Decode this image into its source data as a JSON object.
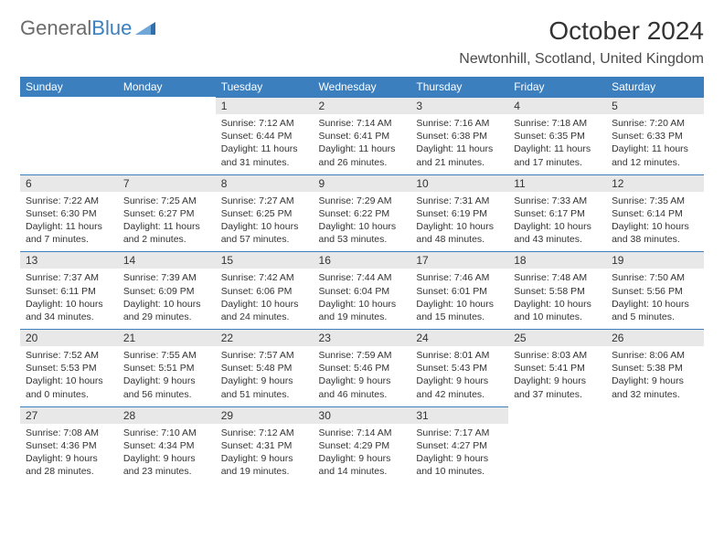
{
  "logo": {
    "word1": "General",
    "word2": "Blue"
  },
  "title": "October 2024",
  "location": "Newtonhill, Scotland, United Kingdom",
  "dayHeaders": [
    "Sunday",
    "Monday",
    "Tuesday",
    "Wednesday",
    "Thursday",
    "Friday",
    "Saturday"
  ],
  "colors": {
    "headerBg": "#3b7fbf",
    "headerText": "#ffffff",
    "dayNumBg": "#e8e8e8",
    "dayBorderTop": "#3b7fbf",
    "bodyText": "#333333"
  },
  "layout": {
    "startCol": 2,
    "weeks": 5
  },
  "days": [
    {
      "n": "1",
      "sunrise": "Sunrise: 7:12 AM",
      "sunset": "Sunset: 6:44 PM",
      "daylight": "Daylight: 11 hours and 31 minutes."
    },
    {
      "n": "2",
      "sunrise": "Sunrise: 7:14 AM",
      "sunset": "Sunset: 6:41 PM",
      "daylight": "Daylight: 11 hours and 26 minutes."
    },
    {
      "n": "3",
      "sunrise": "Sunrise: 7:16 AM",
      "sunset": "Sunset: 6:38 PM",
      "daylight": "Daylight: 11 hours and 21 minutes."
    },
    {
      "n": "4",
      "sunrise": "Sunrise: 7:18 AM",
      "sunset": "Sunset: 6:35 PM",
      "daylight": "Daylight: 11 hours and 17 minutes."
    },
    {
      "n": "5",
      "sunrise": "Sunrise: 7:20 AM",
      "sunset": "Sunset: 6:33 PM",
      "daylight": "Daylight: 11 hours and 12 minutes."
    },
    {
      "n": "6",
      "sunrise": "Sunrise: 7:22 AM",
      "sunset": "Sunset: 6:30 PM",
      "daylight": "Daylight: 11 hours and 7 minutes."
    },
    {
      "n": "7",
      "sunrise": "Sunrise: 7:25 AM",
      "sunset": "Sunset: 6:27 PM",
      "daylight": "Daylight: 11 hours and 2 minutes."
    },
    {
      "n": "8",
      "sunrise": "Sunrise: 7:27 AM",
      "sunset": "Sunset: 6:25 PM",
      "daylight": "Daylight: 10 hours and 57 minutes."
    },
    {
      "n": "9",
      "sunrise": "Sunrise: 7:29 AM",
      "sunset": "Sunset: 6:22 PM",
      "daylight": "Daylight: 10 hours and 53 minutes."
    },
    {
      "n": "10",
      "sunrise": "Sunrise: 7:31 AM",
      "sunset": "Sunset: 6:19 PM",
      "daylight": "Daylight: 10 hours and 48 minutes."
    },
    {
      "n": "11",
      "sunrise": "Sunrise: 7:33 AM",
      "sunset": "Sunset: 6:17 PM",
      "daylight": "Daylight: 10 hours and 43 minutes."
    },
    {
      "n": "12",
      "sunrise": "Sunrise: 7:35 AM",
      "sunset": "Sunset: 6:14 PM",
      "daylight": "Daylight: 10 hours and 38 minutes."
    },
    {
      "n": "13",
      "sunrise": "Sunrise: 7:37 AM",
      "sunset": "Sunset: 6:11 PM",
      "daylight": "Daylight: 10 hours and 34 minutes."
    },
    {
      "n": "14",
      "sunrise": "Sunrise: 7:39 AM",
      "sunset": "Sunset: 6:09 PM",
      "daylight": "Daylight: 10 hours and 29 minutes."
    },
    {
      "n": "15",
      "sunrise": "Sunrise: 7:42 AM",
      "sunset": "Sunset: 6:06 PM",
      "daylight": "Daylight: 10 hours and 24 minutes."
    },
    {
      "n": "16",
      "sunrise": "Sunrise: 7:44 AM",
      "sunset": "Sunset: 6:04 PM",
      "daylight": "Daylight: 10 hours and 19 minutes."
    },
    {
      "n": "17",
      "sunrise": "Sunrise: 7:46 AM",
      "sunset": "Sunset: 6:01 PM",
      "daylight": "Daylight: 10 hours and 15 minutes."
    },
    {
      "n": "18",
      "sunrise": "Sunrise: 7:48 AM",
      "sunset": "Sunset: 5:58 PM",
      "daylight": "Daylight: 10 hours and 10 minutes."
    },
    {
      "n": "19",
      "sunrise": "Sunrise: 7:50 AM",
      "sunset": "Sunset: 5:56 PM",
      "daylight": "Daylight: 10 hours and 5 minutes."
    },
    {
      "n": "20",
      "sunrise": "Sunrise: 7:52 AM",
      "sunset": "Sunset: 5:53 PM",
      "daylight": "Daylight: 10 hours and 0 minutes."
    },
    {
      "n": "21",
      "sunrise": "Sunrise: 7:55 AM",
      "sunset": "Sunset: 5:51 PM",
      "daylight": "Daylight: 9 hours and 56 minutes."
    },
    {
      "n": "22",
      "sunrise": "Sunrise: 7:57 AM",
      "sunset": "Sunset: 5:48 PM",
      "daylight": "Daylight: 9 hours and 51 minutes."
    },
    {
      "n": "23",
      "sunrise": "Sunrise: 7:59 AM",
      "sunset": "Sunset: 5:46 PM",
      "daylight": "Daylight: 9 hours and 46 minutes."
    },
    {
      "n": "24",
      "sunrise": "Sunrise: 8:01 AM",
      "sunset": "Sunset: 5:43 PM",
      "daylight": "Daylight: 9 hours and 42 minutes."
    },
    {
      "n": "25",
      "sunrise": "Sunrise: 8:03 AM",
      "sunset": "Sunset: 5:41 PM",
      "daylight": "Daylight: 9 hours and 37 minutes."
    },
    {
      "n": "26",
      "sunrise": "Sunrise: 8:06 AM",
      "sunset": "Sunset: 5:38 PM",
      "daylight": "Daylight: 9 hours and 32 minutes."
    },
    {
      "n": "27",
      "sunrise": "Sunrise: 7:08 AM",
      "sunset": "Sunset: 4:36 PM",
      "daylight": "Daylight: 9 hours and 28 minutes."
    },
    {
      "n": "28",
      "sunrise": "Sunrise: 7:10 AM",
      "sunset": "Sunset: 4:34 PM",
      "daylight": "Daylight: 9 hours and 23 minutes."
    },
    {
      "n": "29",
      "sunrise": "Sunrise: 7:12 AM",
      "sunset": "Sunset: 4:31 PM",
      "daylight": "Daylight: 9 hours and 19 minutes."
    },
    {
      "n": "30",
      "sunrise": "Sunrise: 7:14 AM",
      "sunset": "Sunset: 4:29 PM",
      "daylight": "Daylight: 9 hours and 14 minutes."
    },
    {
      "n": "31",
      "sunrise": "Sunrise: 7:17 AM",
      "sunset": "Sunset: 4:27 PM",
      "daylight": "Daylight: 9 hours and 10 minutes."
    }
  ]
}
